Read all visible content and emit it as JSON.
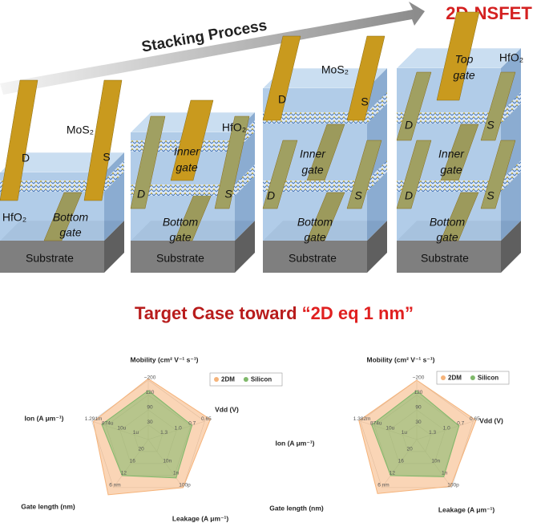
{
  "header": {
    "arrow_label": "Stacking Process",
    "title": "2D-NSFET"
  },
  "stacks": [
    {
      "labels": [
        "MoS₂",
        "D",
        "S",
        "HfO₂",
        "Bottom",
        "gate",
        "Substrate"
      ]
    },
    {
      "labels": [
        "Inner",
        "gate",
        "HfO₂",
        "D",
        "S",
        "Bottom",
        "gate",
        "Substrate"
      ]
    },
    {
      "labels": [
        "MoS₂",
        "D",
        "S",
        "Inner",
        "gate",
        "D",
        "S",
        "Bottom",
        "gate",
        "Substrate"
      ]
    },
    {
      "labels": [
        "Top",
        "gate",
        "HfO₂",
        "D",
        "S",
        "Inner",
        "gate",
        "D",
        "S",
        "Bottom",
        "gate",
        "Substrate"
      ]
    }
  ],
  "section": {
    "title": "Target Case toward ",
    "highlight": "“2D eq 1 nm”"
  },
  "chart_data": [
    {
      "type": "radar",
      "axes": [
        {
          "title": "Mobility (cm² V⁻¹ s⁻¹)",
          "tick_labels": [
            "30",
            "90",
            "120",
            "~200"
          ]
        },
        {
          "title": "Vdd (V)",
          "tick_labels": [
            "1.3",
            "1.0",
            "0.7",
            "0.65"
          ]
        },
        {
          "title": "Leakage (A μm⁻¹)",
          "tick_labels": [
            "10n",
            "1n",
            "100p"
          ]
        },
        {
          "title": "Gate length (nm)",
          "tick_labels": [
            "20",
            "16",
            "12",
            "6 nm"
          ]
        },
        {
          "title": "Ion (A μm⁻¹)",
          "tick_labels": [
            "1u",
            "10u",
            "874u",
            "1.291m"
          ]
        }
      ],
      "rlim": [
        0,
        4
      ],
      "rticks": [
        1,
        2,
        3,
        4
      ],
      "legend": "top-right",
      "series": [
        {
          "name": "2DM",
          "color": "#f5b37a",
          "values": [
            4.1,
            4.4,
            4.0,
            4.6,
            3.9
          ]
        },
        {
          "name": "Silicon",
          "color": "#7fb86a",
          "values": [
            3.3,
            3.1,
            3.2,
            3.0,
            3.3
          ]
        }
      ]
    },
    {
      "type": "radar",
      "axes": [
        {
          "title": "Mobility (cm² V⁻¹ s⁻¹)",
          "tick_labels": [
            "30",
            "90",
            "120",
            "~200"
          ]
        },
        {
          "title": "Vdd (V)",
          "tick_labels": [
            "1.3",
            "1.0",
            "0.7",
            "0.65"
          ]
        },
        {
          "title": "Leakage (A μm⁻¹)",
          "tick_labels": [
            "10n",
            "1n",
            "100p"
          ]
        },
        {
          "title": "Gate length (nm)",
          "tick_labels": [
            "20",
            "16",
            "12",
            "6 nm"
          ]
        },
        {
          "title": "Ion (A μm⁻¹)",
          "tick_labels": [
            "1u",
            "10u",
            "874u",
            "1.382m"
          ]
        }
      ],
      "rlim": [
        0,
        4
      ],
      "rticks": [
        1,
        2,
        3,
        4
      ],
      "legend": "top-right",
      "series": [
        {
          "name": "2DM",
          "color": "#f5b37a",
          "values": [
            4.0,
            4.2,
            3.9,
            4.5,
            4.1
          ]
        },
        {
          "name": "Silicon",
          "color": "#7fb86a",
          "values": [
            3.3,
            3.0,
            3.1,
            3.0,
            3.2
          ]
        }
      ]
    }
  ]
}
